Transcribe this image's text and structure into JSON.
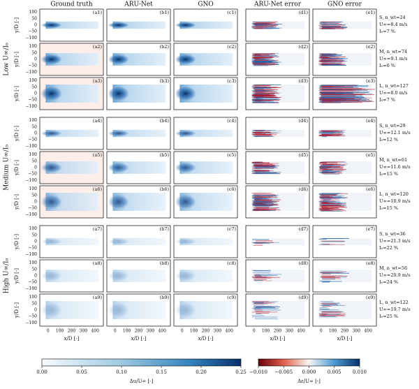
{
  "columns": [
    "Ground truth",
    "ARU-Net",
    "GNO",
    "ARU-Net error",
    "GNO error"
  ],
  "groups": [
    {
      "label": "Low U∞/I₀",
      "rows": [
        0,
        1,
        2
      ]
    },
    {
      "label": "Medium U∞/I₀",
      "rows": [
        3,
        4,
        5
      ]
    },
    {
      "label": "High U∞/I₀",
      "rows": [
        6,
        7,
        8
      ]
    }
  ],
  "rows": [
    {
      "panels": [
        "(a1)",
        "(b1)",
        "(c1)",
        "(d1)",
        "(e1)"
      ],
      "info": [
        "S, n_wt=24",
        "U∞=8.4 m/s",
        "I₀=7 %"
      ]
    },
    {
      "panels": [
        "(a2)",
        "(b2)",
        "(c2)",
        "(d2)",
        "(e2)"
      ],
      "info": [
        "M, n_wt=74",
        "U∞=9.1 m/s",
        "I₀=6 %"
      ]
    },
    {
      "panels": [
        "(a3)",
        "(b3)",
        "(c3)",
        "(d3)",
        "(e3)"
      ],
      "info": [
        "L, n_wt=127",
        "U∞=8.0 m/s",
        "I₀=7 %"
      ]
    },
    {
      "panels": [
        "(a4)",
        "(b4)",
        "(c4)",
        "(d4)",
        "(e4)"
      ],
      "info": [
        "S, n_wt=29",
        "U∞=12.1 m/s",
        "I₀=12 %"
      ]
    },
    {
      "panels": [
        "(a5)",
        "(b5)",
        "(c5)",
        "(d5)",
        "(e5)"
      ],
      "info": [
        "M, n_wt=61",
        "U∞=11.6 m/s",
        "I₀=15 %"
      ]
    },
    {
      "panels": [
        "(a6)",
        "(b6)",
        "(c6)",
        "(d6)",
        "(e6)"
      ],
      "info": [
        "L, n_wt=120",
        "U∞=10.9 m/s",
        "I₀=15 %"
      ]
    },
    {
      "panels": [
        "(a7)",
        "(b7)",
        "(c7)",
        "(d7)",
        "(e7)"
      ],
      "info": [
        "S, n_wt=36",
        "U∞=21.3 m/s",
        "I₀=22 %"
      ]
    },
    {
      "panels": [
        "(a8)",
        "(b8)",
        "(c8)",
        "(d8)",
        "(e8)"
      ],
      "info": [
        "M, n_wt=56",
        "U∞=20.9 m/s",
        "I₀=24 %"
      ]
    },
    {
      "panels": [
        "(a9)",
        "(b9)",
        "(c9)",
        "(d9)",
        "(e9)"
      ],
      "info": [
        "L, n_wt=122",
        "U∞=19.7 m/s",
        "I₀=25 %"
      ]
    }
  ],
  "y_axis": {
    "label": "y/D [-]",
    "ticks": [
      "100",
      "50",
      "0",
      "−50",
      "−100"
    ]
  },
  "x_axis": {
    "label": "x/D [-]",
    "ticks": [
      "0",
      "100",
      "200",
      "300",
      "400"
    ]
  },
  "colorbars": [
    {
      "label": "Δu/U∞ [-]",
      "ticks": [
        "0.00",
        "0.05",
        "0.10",
        "0.15",
        "0.20",
        "0.25"
      ]
    },
    {
      "label": "Δε/U∞ [-]",
      "ticks": [
        "−0.010",
        "−0.005",
        "0.000",
        "0.005",
        "0.010"
      ]
    }
  ]
}
